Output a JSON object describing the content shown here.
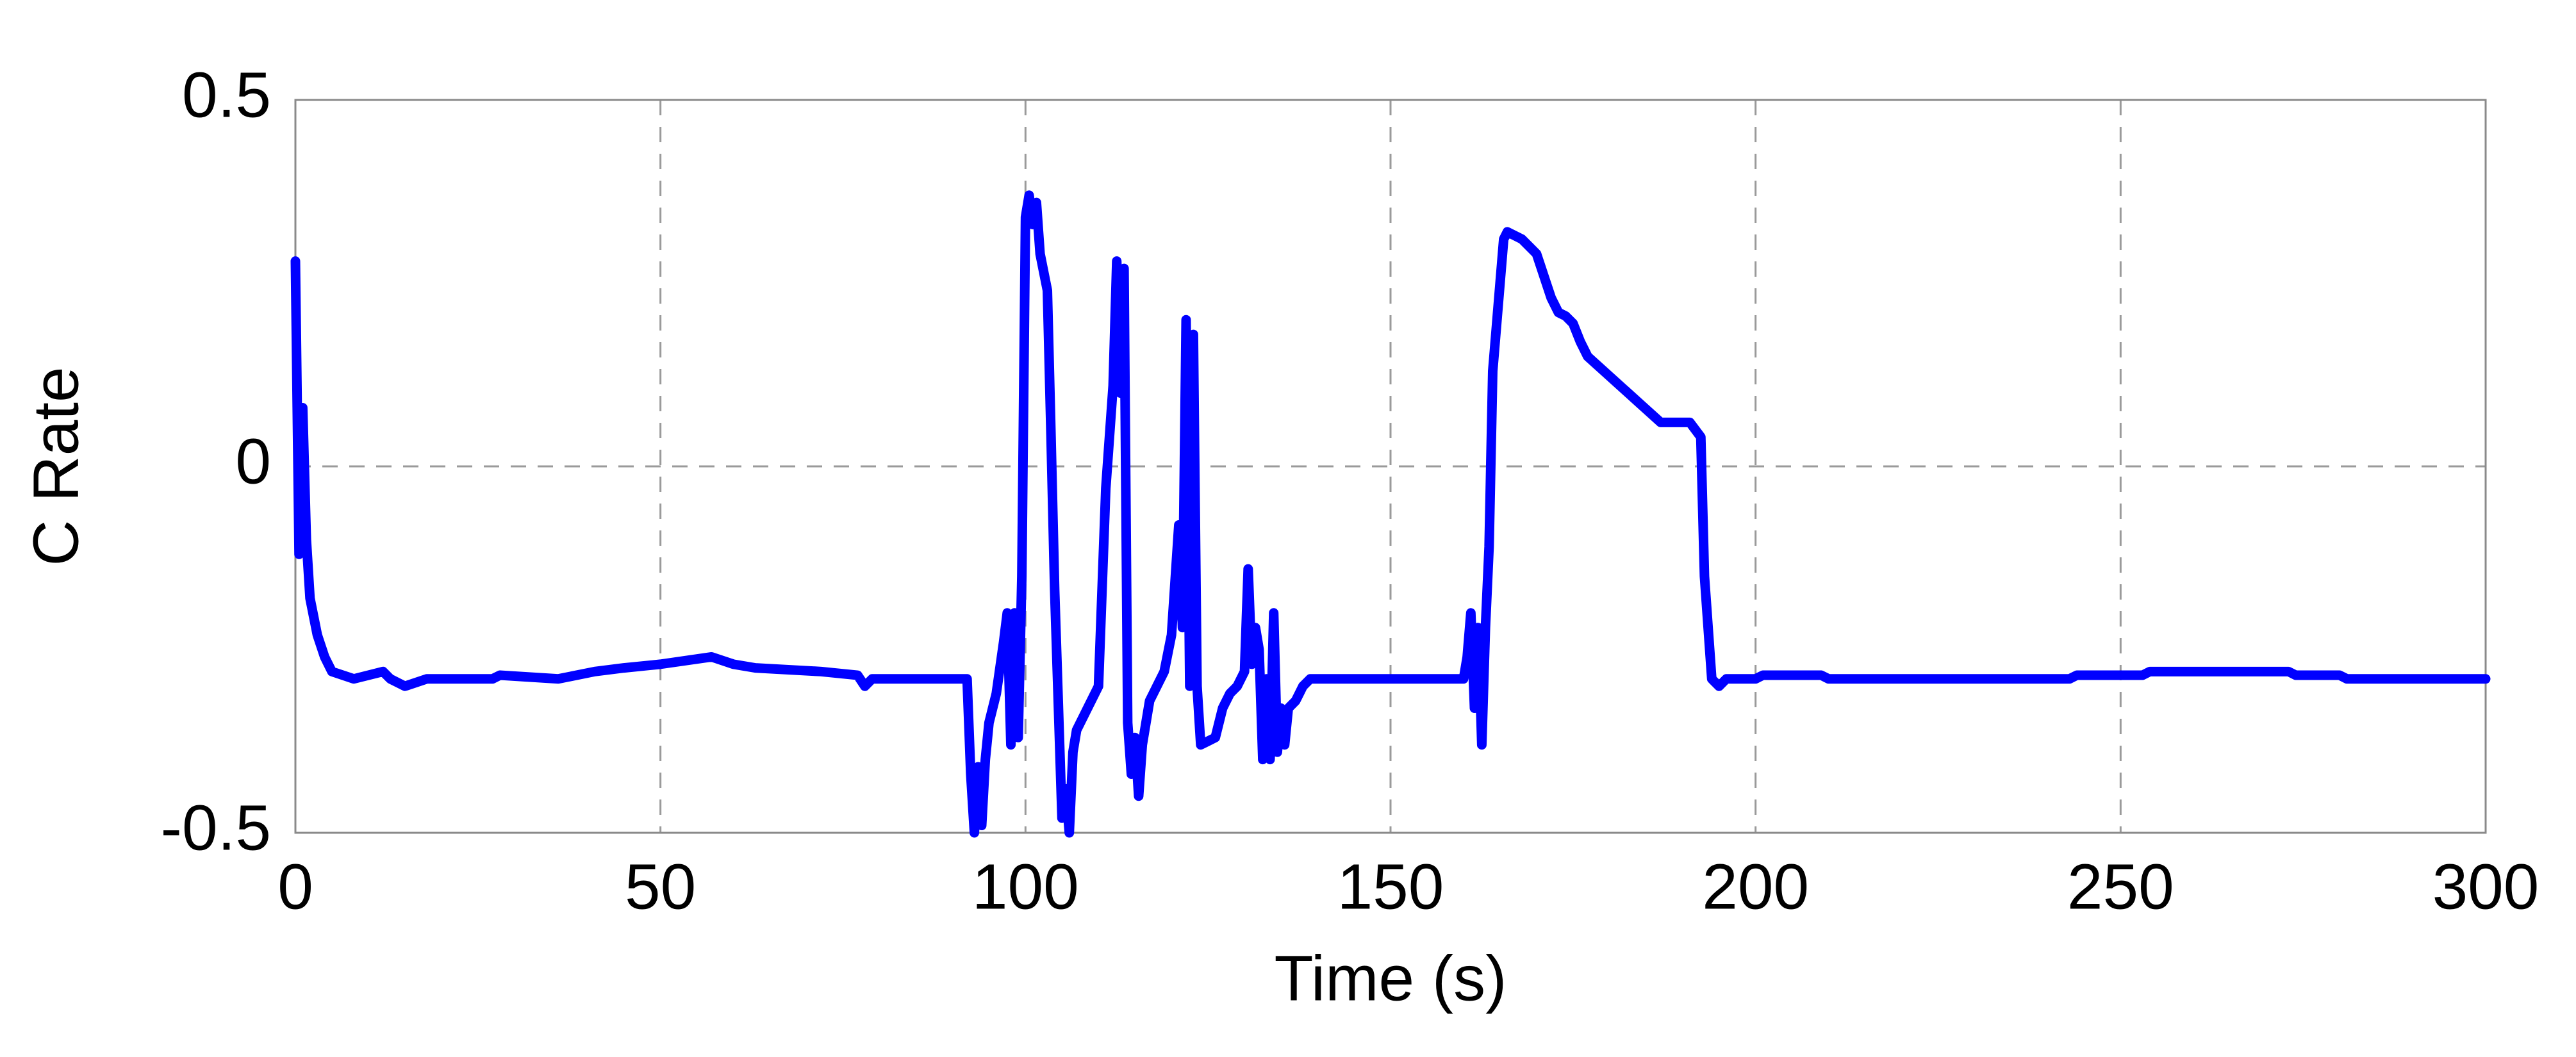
{
  "chart_data": {
    "type": "line",
    "xlabel": "Time (s)",
    "ylabel": "C Rate",
    "xlim": [
      0,
      300
    ],
    "ylim": [
      -0.5,
      0.5
    ],
    "xticks": [
      0,
      50,
      100,
      150,
      200,
      250,
      300
    ],
    "yticks": [
      -0.5,
      0,
      0.5
    ],
    "grid": true,
    "x": [
      0,
      0.5,
      1,
      1.5,
      2,
      3,
      4,
      5,
      8,
      12,
      13,
      15,
      18,
      27,
      28,
      36,
      41,
      45,
      50,
      57,
      60,
      63,
      72,
      77,
      78,
      79,
      92,
      92.5,
      93,
      93.5,
      94,
      94.5,
      95,
      96,
      97,
      97.5,
      98,
      98.5,
      99,
      99.5,
      100,
      100.5,
      101,
      101.5,
      102,
      103,
      103.5,
      104,
      105,
      105.5,
      106,
      106.5,
      107,
      108,
      109,
      110,
      111,
      112,
      112.5,
      113,
      113.5,
      114,
      114.5,
      115,
      115.5,
      116,
      117,
      118,
      119,
      120,
      121,
      121.5,
      122,
      122.5,
      123,
      123.5,
      124,
      125,
      126,
      127,
      128,
      129,
      130,
      130.5,
      131,
      131.5,
      132,
      132.5,
      133,
      133.5,
      134,
      134.5,
      135,
      135.5,
      136,
      137,
      138,
      139,
      160,
      160.5,
      161,
      161.5,
      162,
      162.5,
      163,
      163.5,
      164,
      165,
      165.5,
      166,
      168,
      170,
      171,
      172,
      173,
      174,
      175,
      176,
      177,
      187,
      191,
      192.5,
      193,
      194,
      195,
      196,
      200,
      201,
      209,
      210,
      243,
      244,
      253,
      254,
      273,
      274,
      280,
      281,
      300
    ],
    "series": [
      {
        "name": "C Rate",
        "color": "#0000ff",
        "values": [
          0.28,
          -0.12,
          0.08,
          -0.1,
          -0.18,
          -0.23,
          -0.26,
          -0.28,
          -0.29,
          -0.28,
          -0.29,
          -0.3,
          -0.29,
          -0.29,
          -0.285,
          -0.29,
          -0.28,
          -0.275,
          -0.27,
          -0.26,
          -0.27,
          -0.275,
          -0.28,
          -0.285,
          -0.3,
          -0.29,
          -0.29,
          -0.42,
          -0.5,
          -0.41,
          -0.49,
          -0.4,
          -0.35,
          -0.31,
          -0.24,
          -0.2,
          -0.38,
          -0.2,
          -0.37,
          -0.15,
          0.34,
          0.37,
          0.33,
          0.36,
          0.29,
          0.24,
          0.04,
          -0.17,
          -0.48,
          -0.44,
          -0.5,
          -0.39,
          -0.36,
          -0.34,
          -0.32,
          -0.3,
          -0.03,
          0.11,
          0.28,
          0.1,
          0.27,
          -0.35,
          -0.42,
          -0.37,
          -0.45,
          -0.38,
          -0.32,
          -0.3,
          -0.28,
          -0.23,
          -0.08,
          -0.22,
          0.2,
          -0.3,
          0.18,
          -0.3,
          -0.38,
          -0.375,
          -0.37,
          -0.33,
          -0.31,
          -0.3,
          -0.28,
          -0.14,
          -0.27,
          -0.22,
          -0.25,
          -0.4,
          -0.29,
          -0.4,
          -0.2,
          -0.39,
          -0.33,
          -0.38,
          -0.33,
          -0.32,
          -0.3,
          -0.29,
          -0.29,
          -0.26,
          -0.2,
          -0.33,
          -0.22,
          -0.38,
          -0.22,
          -0.11,
          0.13,
          0.25,
          0.31,
          0.32,
          0.31,
          0.29,
          0.26,
          0.23,
          0.21,
          0.205,
          0.195,
          0.17,
          0.15,
          0.06,
          0.06,
          0.04,
          -0.15,
          -0.29,
          -0.3,
          -0.29,
          -0.29,
          -0.285,
          -0.285,
          -0.29,
          -0.29,
          -0.285,
          -0.285,
          -0.28,
          -0.28,
          -0.285,
          -0.285,
          -0.29,
          -0.29
        ]
      }
    ]
  }
}
